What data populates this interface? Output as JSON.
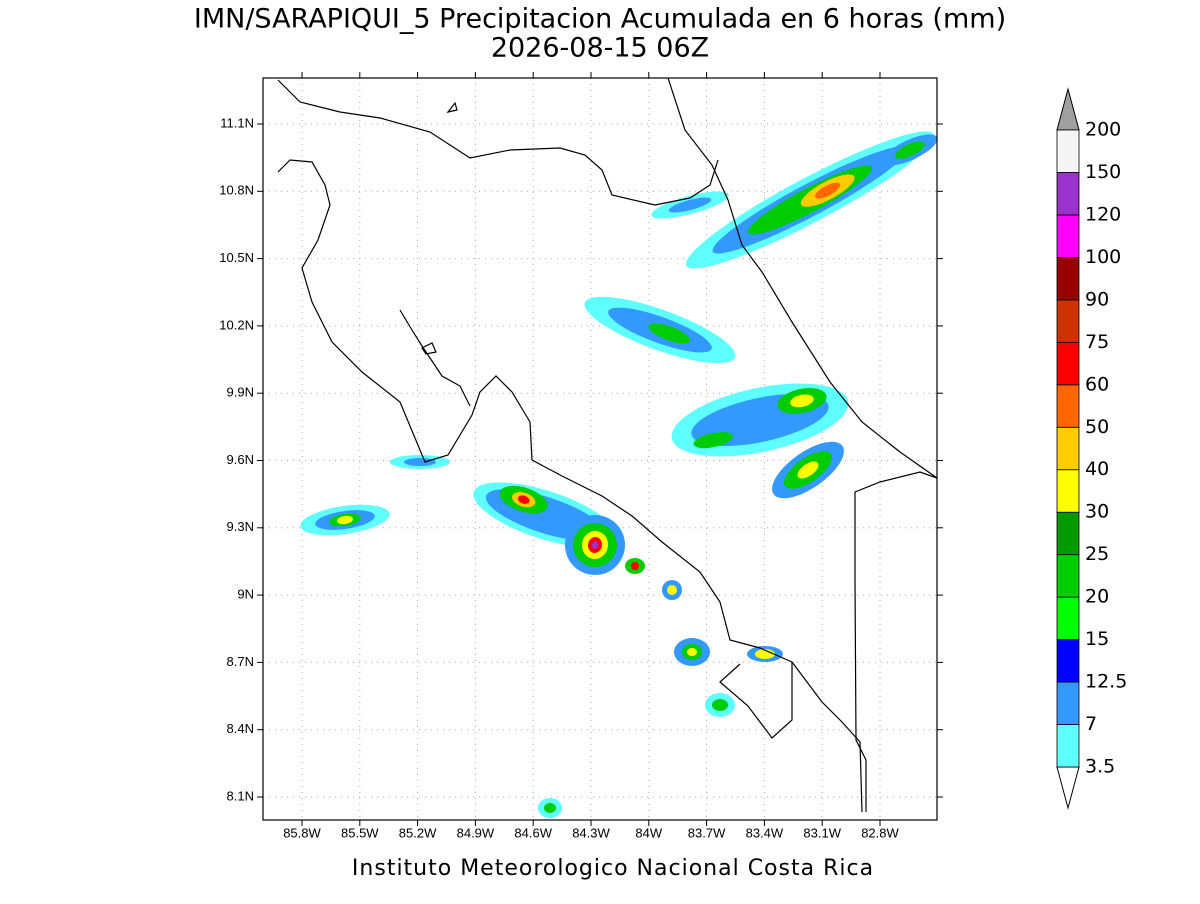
{
  "title": "IMN/SARAPIQUI_5 Precipitacion Acumulada en 6 horas (mm)",
  "subtitle": "2026-08-15 06Z",
  "footer": "Instituto Meteorologico Nacional Costa Rica",
  "lon_ticks": [
    "85.8W",
    "85.5W",
    "85.2W",
    "84.9W",
    "84.6W",
    "84.3W",
    "84W",
    "83.7W",
    "83.4W",
    "83.1W",
    "82.8W"
  ],
  "lat_ticks": [
    "11.1N",
    "10.8N",
    "10.5N",
    "10.2N",
    "9.9N",
    "9.6N",
    "9.3N",
    "9N",
    "8.7N",
    "8.4N",
    "8.1N"
  ],
  "colorbar": {
    "levels": [
      "3.5",
      "7",
      "12.5",
      "15",
      "20",
      "25",
      "30",
      "40",
      "50",
      "60",
      "75",
      "90",
      "100",
      "120",
      "150",
      "200"
    ],
    "colors": [
      "#5fffff",
      "#3399ff",
      "#0000ff",
      "#00ff00",
      "#00cc00",
      "#009900",
      "#ffff00",
      "#ffcc00",
      "#ff6600",
      "#ff0000",
      "#cc3300",
      "#990000",
      "#ff00ff",
      "#9933cc",
      "#f5f5f5"
    ],
    "under_color": "#ffffff",
    "over_color": "#a0a0a0"
  }
}
